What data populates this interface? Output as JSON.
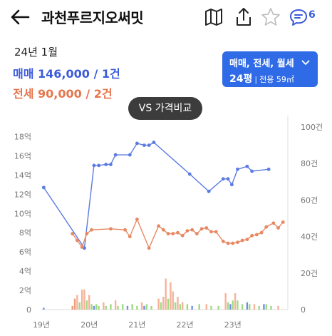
{
  "header": {
    "title": "과천푸르지오써밋",
    "comment_count": "6"
  },
  "summary": {
    "date": "24년 1월",
    "sale": "매매 146,000 / 1건",
    "jeonse": "전세 90,000 / 2건"
  },
  "filter": {
    "types": "매매, 전세, 월세",
    "size": "24평",
    "area": "전용 59㎡"
  },
  "compare_button": "VS 가격비교",
  "colors": {
    "sale": "#5b7be0",
    "jeonse": "#e88863",
    "accent": "#2f6be6",
    "volume_green": "#8ed36e"
  },
  "chart_data": {
    "type": "line",
    "x_ticks": [
      "19년",
      "20년",
      "21년",
      "22년",
      "23년"
    ],
    "xlim": [
      2019.0,
      2024.15
    ],
    "y_left_ticks": [
      "0",
      "2억",
      "4억",
      "6억",
      "8억",
      "10억",
      "12억",
      "14억",
      "16억",
      "18억"
    ],
    "ylim_left": [
      0,
      19
    ],
    "y_right_ticks": [
      "0",
      "20건",
      "40건",
      "60건",
      "80건",
      "100건"
    ],
    "ylim_right": [
      0,
      100
    ],
    "series": [
      {
        "color": "#5b7be0",
        "points": [
          [
            2019.05,
            12.7
          ],
          [
            2019.9,
            6.4
          ],
          [
            2020.1,
            15.0
          ],
          [
            2020.2,
            15.0
          ],
          [
            2020.35,
            15.1
          ],
          [
            2020.45,
            15.1
          ],
          [
            2020.55,
            16.1
          ],
          [
            2020.85,
            16.1
          ],
          [
            2021.0,
            17.3
          ],
          [
            2021.15,
            17.1
          ],
          [
            2021.25,
            17.1
          ],
          [
            2021.35,
            17.4
          ],
          [
            2022.1,
            14.1
          ],
          [
            2022.5,
            12.3
          ],
          [
            2022.8,
            13.6
          ],
          [
            2022.9,
            13.6
          ],
          [
            2022.98,
            13.0
          ],
          [
            2023.1,
            14.6
          ],
          [
            2023.3,
            14.9
          ],
          [
            2023.4,
            14.4
          ],
          [
            2023.75,
            14.6
          ]
        ]
      },
      {
        "color": "#e88863",
        "points": [
          [
            2019.65,
            7.9
          ],
          [
            2019.75,
            7.2
          ],
          [
            2019.85,
            6.5
          ],
          [
            2019.95,
            7.9
          ],
          [
            2020.05,
            8.3
          ],
          [
            2020.45,
            8.4
          ],
          [
            2020.75,
            8.3
          ],
          [
            2020.85,
            7.6
          ],
          [
            2021.0,
            9.4
          ],
          [
            2021.25,
            6.4
          ],
          [
            2021.45,
            8.7
          ],
          [
            2021.55,
            8.3
          ],
          [
            2021.65,
            7.9
          ],
          [
            2021.75,
            7.9
          ],
          [
            2021.85,
            8.0
          ],
          [
            2021.95,
            7.7
          ],
          [
            2022.05,
            8.2
          ],
          [
            2022.15,
            8.3
          ],
          [
            2022.25,
            7.9
          ],
          [
            2022.35,
            8.4
          ],
          [
            2022.45,
            8.5
          ],
          [
            2022.55,
            8.1
          ],
          [
            2022.65,
            8.1
          ],
          [
            2022.8,
            7.1
          ],
          [
            2022.9,
            6.9
          ],
          [
            2023.0,
            6.9
          ],
          [
            2023.1,
            7.0
          ],
          [
            2023.2,
            7.2
          ],
          [
            2023.3,
            7.3
          ],
          [
            2023.4,
            7.7
          ],
          [
            2023.5,
            7.8
          ],
          [
            2023.6,
            8.0
          ],
          [
            2023.7,
            8.6
          ],
          [
            2023.85,
            9.0
          ],
          [
            2023.95,
            8.5
          ],
          [
            2024.05,
            9.1
          ]
        ]
      }
    ],
    "volume_bars": [
      {
        "x": 2019.05,
        "count": 1,
        "color": "#5b7be0"
      },
      {
        "x": 2019.65,
        "count": 2,
        "color": "#e88863"
      },
      {
        "x": 2019.7,
        "count": 6,
        "color": "#e88863"
      },
      {
        "x": 2019.75,
        "count": 8,
        "color": "#f4a58a"
      },
      {
        "x": 2019.8,
        "count": 4,
        "color": "#8ed36e"
      },
      {
        "x": 2019.85,
        "count": 11,
        "color": "#f4a58a"
      },
      {
        "x": 2019.9,
        "count": 11,
        "color": "#f4a58a"
      },
      {
        "x": 2019.95,
        "count": 5,
        "color": "#8ed36e"
      },
      {
        "x": 2020.0,
        "count": 8,
        "color": "#f4a58a"
      },
      {
        "x": 2020.05,
        "count": 3,
        "color": "#8ed36e"
      },
      {
        "x": 2020.1,
        "count": 2,
        "color": "#5b7be0"
      },
      {
        "x": 2020.15,
        "count": 3,
        "color": "#8ed36e"
      },
      {
        "x": 2020.2,
        "count": 2,
        "color": "#8ed36e"
      },
      {
        "x": 2020.3,
        "count": 4,
        "color": "#f4a58a"
      },
      {
        "x": 2020.35,
        "count": 2,
        "color": "#8ed36e"
      },
      {
        "x": 2020.45,
        "count": 3,
        "color": "#8ed36e"
      },
      {
        "x": 2020.55,
        "count": 5,
        "color": "#f4a58a"
      },
      {
        "x": 2020.6,
        "count": 2,
        "color": "#8ed36e"
      },
      {
        "x": 2020.7,
        "count": 3,
        "color": "#8ed36e"
      },
      {
        "x": 2020.8,
        "count": 2,
        "color": "#5b7be0"
      },
      {
        "x": 2020.9,
        "count": 3,
        "color": "#8ed36e"
      },
      {
        "x": 2021.0,
        "count": 2,
        "color": "#8ed36e"
      },
      {
        "x": 2021.1,
        "count": 4,
        "color": "#f4a58a"
      },
      {
        "x": 2021.15,
        "count": 2,
        "color": "#5b7be0"
      },
      {
        "x": 2021.2,
        "count": 3,
        "color": "#8ed36e"
      },
      {
        "x": 2021.3,
        "count": 2,
        "color": "#8ed36e"
      },
      {
        "x": 2021.45,
        "count": 6,
        "color": "#f4a58a"
      },
      {
        "x": 2021.5,
        "count": 4,
        "color": "#8ed36e"
      },
      {
        "x": 2021.55,
        "count": 7,
        "color": "#f4a58a"
      },
      {
        "x": 2021.6,
        "count": 17,
        "color": "#f4a58a"
      },
      {
        "x": 2021.65,
        "count": 6,
        "color": "#8ed36e"
      },
      {
        "x": 2021.7,
        "count": 15,
        "color": "#f4a58a"
      },
      {
        "x": 2021.75,
        "count": 10,
        "color": "#f4a58a"
      },
      {
        "x": 2021.8,
        "count": 4,
        "color": "#8ed36e"
      },
      {
        "x": 2021.85,
        "count": 7,
        "color": "#f4a58a"
      },
      {
        "x": 2021.9,
        "count": 3,
        "color": "#8ed36e"
      },
      {
        "x": 2021.95,
        "count": 4,
        "color": "#f4a58a"
      },
      {
        "x": 2022.05,
        "count": 3,
        "color": "#8ed36e"
      },
      {
        "x": 2022.15,
        "count": 2,
        "color": "#5b7be0"
      },
      {
        "x": 2022.3,
        "count": 3,
        "color": "#8ed36e"
      },
      {
        "x": 2022.45,
        "count": 3,
        "color": "#f4a58a"
      },
      {
        "x": 2022.55,
        "count": 2,
        "color": "#8ed36e"
      },
      {
        "x": 2022.7,
        "count": 2,
        "color": "#8ed36e"
      },
      {
        "x": 2022.85,
        "count": 9,
        "color": "#f4a58a"
      },
      {
        "x": 2022.9,
        "count": 4,
        "color": "#8ed36e"
      },
      {
        "x": 2022.95,
        "count": 3,
        "color": "#5b7be0"
      },
      {
        "x": 2023.0,
        "count": 5,
        "color": "#8ed36e"
      },
      {
        "x": 2023.05,
        "count": 9,
        "color": "#f4a58a"
      },
      {
        "x": 2023.1,
        "count": 5,
        "color": "#8ed36e"
      },
      {
        "x": 2023.2,
        "count": 3,
        "color": "#8ed36e"
      },
      {
        "x": 2023.3,
        "count": 4,
        "color": "#5b7be0"
      },
      {
        "x": 2023.35,
        "count": 3,
        "color": "#8ed36e"
      },
      {
        "x": 2023.45,
        "count": 3,
        "color": "#f4a58a"
      },
      {
        "x": 2023.55,
        "count": 2,
        "color": "#8ed36e"
      },
      {
        "x": 2023.65,
        "count": 3,
        "color": "#5b7be0"
      },
      {
        "x": 2023.7,
        "count": 3,
        "color": "#8ed36e"
      },
      {
        "x": 2023.8,
        "count": 2,
        "color": "#8ed36e"
      },
      {
        "x": 2023.95,
        "count": 2,
        "color": "#f4a58a"
      }
    ]
  }
}
